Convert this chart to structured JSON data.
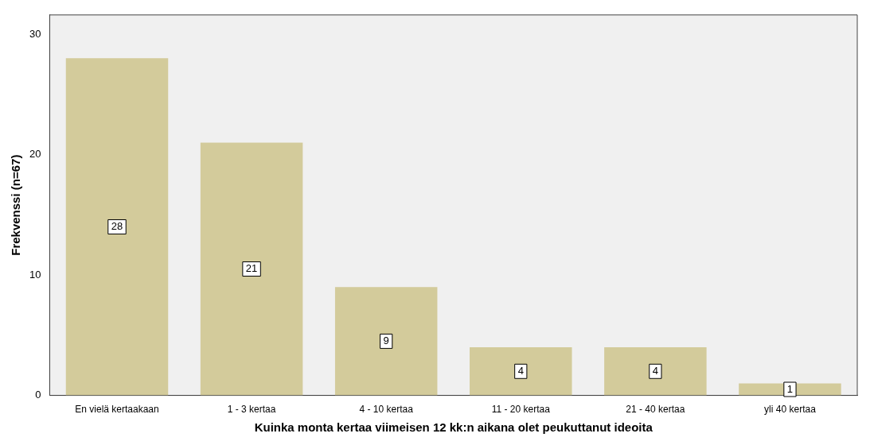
{
  "chart_data": {
    "type": "bar",
    "xlabel": "Kuinka monta kertaa viimeisen 12 kk:n aikana olet peukuttanut ideoita",
    "ylabel": "Frekvenssi (n=67)",
    "categories": [
      "En vielä kertaakaan",
      "1 - 3 kertaa",
      "4 - 10 kertaa",
      "11 - 20 kertaa",
      "21 - 40 kertaa",
      "yli 40 kertaa"
    ],
    "values": [
      28,
      21,
      9,
      4,
      4,
      1
    ],
    "color": "#d3cb9b",
    "ylim": [
      0,
      31.6
    ],
    "yticks": [
      0,
      10,
      20,
      30
    ],
    "data_labels": true,
    "grid": false,
    "legend": false
  }
}
